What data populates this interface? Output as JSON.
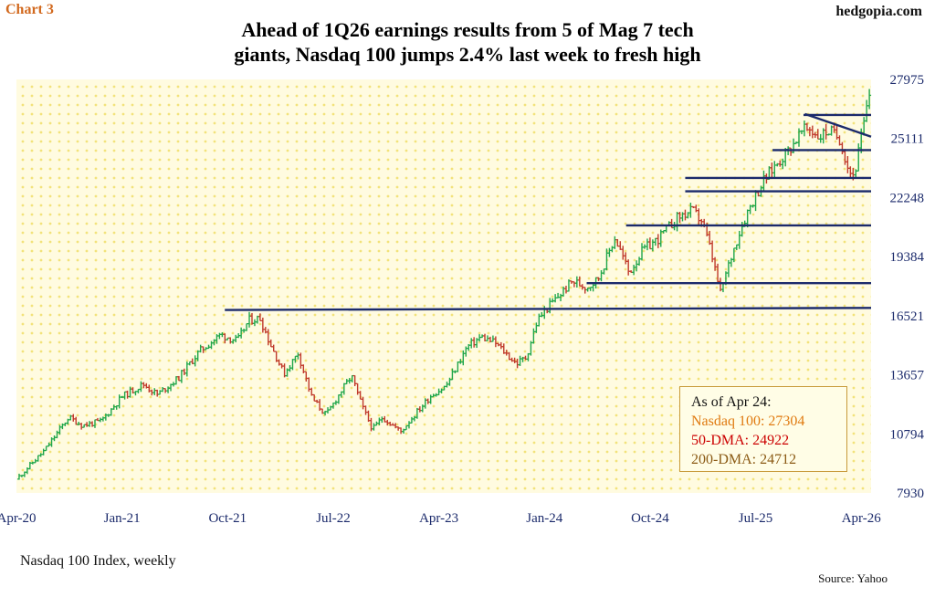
{
  "header": {
    "chart_label": "Chart 3",
    "brand": "hedgopia.com",
    "title_line1": "Ahead of 1Q26 earnings results from 5 of Mag 7 tech",
    "title_line2": "giants, Nasdaq 100 jumps 2.4% last week to fresh high"
  },
  "footer": {
    "subtitle": "Nasdaq 100 Index, weekly",
    "source": "Source: Yahoo"
  },
  "legend": {
    "as_of": "As of Apr 24:",
    "nasdaq": "Nasdaq 100: 27304",
    "dma50": "50-DMA: 24922",
    "dma200": "200-DMA: 24712"
  },
  "colors": {
    "up": "#1fa64a",
    "down": "#c0392b",
    "line": "#1b2a6b",
    "plot_bg": "#fffbe0",
    "dot": "#f2e27a",
    "axis_text": "#1b2a6b"
  },
  "chart_data": {
    "type": "ohlc",
    "title": "Ahead of 1Q26 earnings results from 5 of Mag 7 tech giants, Nasdaq 100 jumps 2.4% last week to fresh high",
    "frequency": "weekly",
    "series_name": "Nasdaq 100 Index",
    "x_range": [
      2020.25,
      2026.32
    ],
    "ylim": [
      7930,
      27975
    ],
    "y_ticks": [
      7930,
      10794,
      13657,
      16521,
      19384,
      22248,
      25111,
      27975
    ],
    "x_ticks": [
      {
        "label": "Apr-20",
        "t": 2020.25
      },
      {
        "label": "Jan-21",
        "t": 2021.0
      },
      {
        "label": "Oct-21",
        "t": 2021.75
      },
      {
        "label": "Jul-22",
        "t": 2022.5
      },
      {
        "label": "Apr-23",
        "t": 2023.25
      },
      {
        "label": "Jan-24",
        "t": 2024.0
      },
      {
        "label": "Oct-24",
        "t": 2024.75
      },
      {
        "label": "Jul-25",
        "t": 2025.5
      },
      {
        "label": "Apr-26",
        "t": 2026.25
      }
    ],
    "price_path": [
      [
        2020.25,
        8600
      ],
      [
        2020.45,
        10000
      ],
      [
        2020.62,
        11600
      ],
      [
        2020.72,
        11200
      ],
      [
        2020.85,
        11400
      ],
      [
        2021.0,
        12600
      ],
      [
        2021.15,
        13200
      ],
      [
        2021.25,
        12700
      ],
      [
        2021.4,
        13500
      ],
      [
        2021.55,
        14800
      ],
      [
        2021.7,
        15600
      ],
      [
        2021.82,
        15300
      ],
      [
        2021.9,
        16300
      ],
      [
        2021.98,
        16400
      ],
      [
        2022.05,
        15200
      ],
      [
        2022.15,
        13700
      ],
      [
        2022.25,
        14700
      ],
      [
        2022.35,
        12500
      ],
      [
        2022.45,
        11700
      ],
      [
        2022.55,
        12800
      ],
      [
        2022.63,
        13600
      ],
      [
        2022.7,
        12200
      ],
      [
        2022.78,
        11000
      ],
      [
        2022.85,
        11600
      ],
      [
        2022.98,
        10900
      ],
      [
        2023.05,
        11500
      ],
      [
        2023.2,
        12700
      ],
      [
        2023.3,
        13100
      ],
      [
        2023.45,
        15000
      ],
      [
        2023.55,
        15500
      ],
      [
        2023.65,
        15200
      ],
      [
        2023.8,
        14200
      ],
      [
        2023.87,
        14500
      ],
      [
        2023.95,
        16300
      ],
      [
        2024.02,
        16900
      ],
      [
        2024.2,
        18200
      ],
      [
        2024.3,
        17900
      ],
      [
        2024.38,
        18300
      ],
      [
        2024.5,
        20300
      ],
      [
        2024.55,
        19500
      ],
      [
        2024.6,
        18600
      ],
      [
        2024.7,
        19700
      ],
      [
        2024.8,
        20200
      ],
      [
        2024.95,
        21300
      ],
      [
        2025.05,
        21600
      ],
      [
        2025.12,
        21100
      ],
      [
        2025.18,
        19700
      ],
      [
        2025.25,
        17600
      ],
      [
        2025.3,
        18800
      ],
      [
        2025.38,
        20500
      ],
      [
        2025.45,
        21700
      ],
      [
        2025.55,
        23000
      ],
      [
        2025.65,
        23900
      ],
      [
        2025.75,
        24700
      ],
      [
        2025.82,
        25400
      ],
      [
        2025.88,
        25600
      ],
      [
        2025.95,
        25200
      ],
      [
        2026.02,
        25500
      ],
      [
        2026.1,
        25100
      ],
      [
        2026.16,
        23600
      ],
      [
        2026.2,
        23300
      ],
      [
        2026.24,
        24800
      ],
      [
        2026.28,
        26200
      ],
      [
        2026.31,
        27304
      ]
    ],
    "reference_lines": [
      {
        "name": "resistance-2021-high",
        "t0": 2021.73,
        "t1": 2026.32,
        "y0": 16800,
        "y1": 16900
      },
      {
        "name": "support-18100",
        "t0": 2024.3,
        "t1": 2026.32,
        "y0": 18100,
        "y1": 18100
      },
      {
        "name": "level-20900",
        "t0": 2024.58,
        "t1": 2026.32,
        "y0": 20900,
        "y1": 20900
      },
      {
        "name": "level-22550",
        "t0": 2025.0,
        "t1": 2026.32,
        "y0": 22550,
        "y1": 22550
      },
      {
        "name": "level-23200",
        "t0": 2025.0,
        "t1": 2026.32,
        "y0": 23200,
        "y1": 23200
      },
      {
        "name": "level-24550",
        "t0": 2025.62,
        "t1": 2026.32,
        "y0": 24550,
        "y1": 24550
      },
      {
        "name": "level-26250",
        "t0": 2025.84,
        "t1": 2026.32,
        "y0": 26250,
        "y1": 26250
      },
      {
        "name": "falling-trendline",
        "t0": 2025.85,
        "t1": 2026.32,
        "y0": 26300,
        "y1": 25200
      }
    ]
  }
}
